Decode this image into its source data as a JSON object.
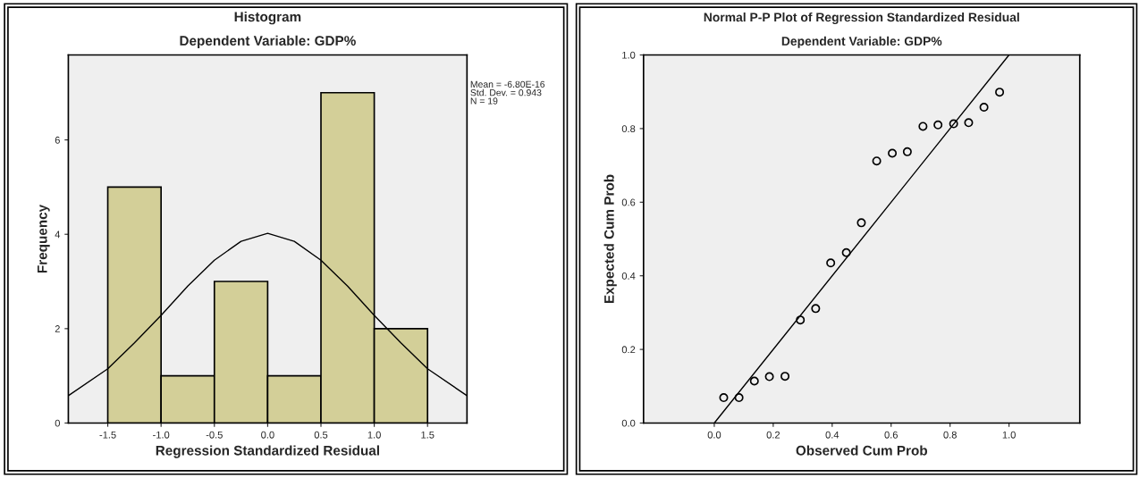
{
  "chart_data": [
    {
      "type": "histogram",
      "title": "Histogram",
      "subtitle": "Dependent Variable: GDP%",
      "xlabel": "Regression Standardized Residual",
      "ylabel": "Frequency",
      "bins": [
        -1.5,
        -1.0,
        -0.5,
        0.0,
        0.5,
        1.0,
        1.5
      ],
      "series": [
        {
          "color": "#d3cf98",
          "values": [
            5,
            1,
            3,
            1,
            7,
            2
          ]
        },
        {
          "type": "line",
          "color": "#000000",
          "x": [
            -1.87,
            -1.5,
            -1.25,
            -1.0,
            -0.75,
            -0.5,
            -0.25,
            0.0,
            0.25,
            0.5,
            0.75,
            1.0,
            1.25,
            1.5,
            1.87
          ],
          "values": [
            0.58,
            1.15,
            1.7,
            2.28,
            2.9,
            3.45,
            3.85,
            4.02,
            3.85,
            3.45,
            2.9,
            2.28,
            1.7,
            1.15,
            0.58
          ]
        }
      ],
      "xlim": [
        -1.87,
        1.87
      ],
      "ylim": [
        0,
        7.8
      ],
      "xticks": [
        -1.5,
        {
          "value": -1.0,
          "label": "-1.0"
        },
        -0.5,
        {
          "value": 0,
          "label": "0.0"
        },
        0.5,
        {
          "value": 1,
          "label": "1.0"
        },
        1.5
      ],
      "yticks": [
        0,
        2,
        4,
        6
      ],
      "grid": false,
      "legend": false,
      "annotations": [
        "Mean = -6.80E-16\nStd. Dev. = 0.943\nN = 19"
      ]
    },
    {
      "type": "scatter",
      "title": "Normal P-P Plot of Regression Standardized Residual",
      "subtitle": "Dependent Variable: GDP%",
      "xlabel": "Observed Cum Prob",
      "ylabel": "Expected Cum Prob",
      "series": [
        {
          "color": "#000000",
          "marker": "circle",
          "x": [
            0.032,
            0.084,
            0.136,
            0.187,
            0.24,
            0.292,
            0.344,
            0.395,
            0.448,
            0.499,
            0.551,
            0.604,
            0.655,
            0.708,
            0.759,
            0.812,
            0.863,
            0.915,
            0.968
          ],
          "values": [
            0.069,
            0.069,
            0.114,
            0.126,
            0.127,
            0.28,
            0.311,
            0.435,
            0.463,
            0.544,
            0.712,
            0.733,
            0.737,
            0.806,
            0.81,
            0.813,
            0.816,
            0.858,
            0.899
          ]
        },
        {
          "type": "line",
          "color": "#000000",
          "x": [
            0,
            1
          ],
          "values": [
            0,
            1
          ]
        }
      ],
      "xlim": [
        -0.24,
        1.24
      ],
      "ylim": [
        0,
        1
      ],
      "xticks": [
        {
          "value": 0,
          "label": "0.0"
        },
        0.2,
        0.4,
        0.6,
        0.8,
        {
          "value": 1,
          "label": "1.0"
        }
      ],
      "yticks": [
        {
          "value": 0,
          "label": "0.0"
        },
        0.2,
        0.4,
        0.6,
        0.8,
        {
          "value": 1,
          "label": "1.0"
        }
      ],
      "grid": false,
      "legend": false
    }
  ]
}
